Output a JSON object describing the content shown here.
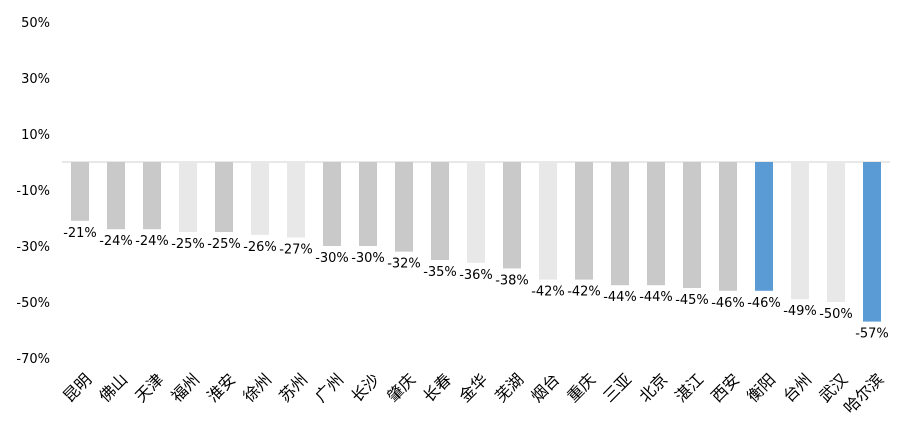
{
  "chart_data": {
    "type": "bar",
    "title": "",
    "xlabel": "",
    "ylabel": "",
    "ylim": [
      -70,
      50
    ],
    "yticks": [
      50,
      30,
      10,
      -10,
      -30,
      -50,
      -70
    ],
    "ytick_labels": [
      "50%",
      "30%",
      "10%",
      "-10%",
      "-30%",
      "-50%",
      "-70%"
    ],
    "grid": false,
    "legend": "none",
    "categories": [
      "昆明",
      "佛山",
      "天津",
      "福州",
      "淮安",
      "徐州",
      "苏州",
      "广州",
      "长沙",
      "肇庆",
      "长春",
      "金华",
      "芜湖",
      "烟台",
      "重庆",
      "三亚",
      "北京",
      "湛江",
      "西安",
      "衡阳",
      "台州",
      "武汉",
      "哈尔滨"
    ],
    "values": [
      -21,
      -24,
      -24,
      -25,
      -25,
      -26,
      -27,
      -30,
      -30,
      -32,
      -35,
      -36,
      -38,
      -42,
      -42,
      -44,
      -44,
      -45,
      -46,
      -46,
      -49,
      -50,
      -57
    ],
    "value_labels": [
      "-21%",
      "-24%",
      "-24%",
      "-25%",
      "-25%",
      "-26%",
      "-27%",
      "-30%",
      "-30%",
      "-32%",
      "-35%",
      "-36%",
      "-38%",
      "-42%",
      "-42%",
      "-44%",
      "-44%",
      "-45%",
      "-46%",
      "-46%",
      "-49%",
      "-50%",
      "-57%"
    ],
    "bar_color_keys": [
      "dark",
      "dark",
      "dark",
      "light",
      "dark",
      "light",
      "light",
      "dark",
      "dark",
      "dark",
      "dark",
      "light",
      "dark",
      "light",
      "dark",
      "dark",
      "dark",
      "dark",
      "dark",
      "blue",
      "light",
      "light",
      "blue"
    ],
    "colors": {
      "dark": "#c9c9c9",
      "light": "#e8e8e8",
      "blue": "#5b9bd5",
      "zero_line": "#d0d0d0"
    }
  }
}
